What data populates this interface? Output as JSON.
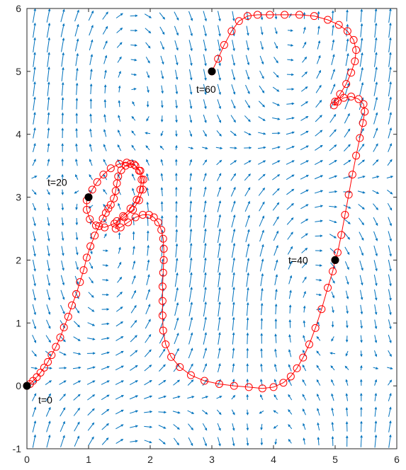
{
  "chart_data": {
    "type": "line",
    "title": "",
    "xlabel": "",
    "ylabel": "",
    "xlim": [
      0,
      6
    ],
    "ylim": [
      -1,
      6
    ],
    "xticks": [
      "0",
      "1",
      "2",
      "3",
      "4",
      "5",
      "6"
    ],
    "yticks": [
      "-1",
      "0",
      "1",
      "2",
      "3",
      "4",
      "5",
      "6"
    ],
    "grid": false,
    "legend": "none",
    "colors": {
      "quiver": "#0072BD",
      "trajectory": "#FF0000",
      "markers": "#000000",
      "axes": "#262626"
    },
    "series": [
      {
        "kind": "trajectory",
        "marker": "open-circle",
        "points": [
          [
            0.0,
            0.0
          ],
          [
            0.05,
            0.03
          ],
          [
            0.1,
            0.08
          ],
          [
            0.16,
            0.14
          ],
          [
            0.22,
            0.21
          ],
          [
            0.28,
            0.29
          ],
          [
            0.34,
            0.38
          ],
          [
            0.4,
            0.49
          ],
          [
            0.47,
            0.62
          ],
          [
            0.54,
            0.77
          ],
          [
            0.6,
            0.93
          ],
          [
            0.67,
            1.1
          ],
          [
            0.73,
            1.28
          ],
          [
            0.8,
            1.46
          ],
          [
            0.86,
            1.65
          ],
          [
            0.92,
            1.84
          ],
          [
            0.97,
            2.04
          ],
          [
            1.03,
            2.22
          ],
          [
            1.1,
            2.39
          ],
          [
            1.17,
            2.54
          ],
          [
            1.23,
            2.66
          ],
          [
            1.28,
            2.75
          ],
          [
            1.32,
            2.82
          ],
          [
            1.36,
            2.88
          ],
          [
            1.41,
            2.98
          ],
          [
            1.44,
            3.1
          ],
          [
            1.46,
            3.22
          ],
          [
            1.48,
            3.33
          ],
          [
            1.53,
            3.43
          ],
          [
            1.6,
            3.5
          ],
          [
            1.68,
            3.53
          ],
          [
            1.76,
            3.5
          ],
          [
            1.84,
            3.42
          ],
          [
            1.89,
            3.28
          ],
          [
            1.88,
            3.12
          ],
          [
            1.82,
            2.95
          ],
          [
            1.72,
            2.8
          ],
          [
            1.58,
            2.68
          ],
          [
            1.42,
            2.58
          ],
          [
            1.26,
            2.52
          ],
          [
            1.12,
            2.55
          ],
          [
            1.02,
            2.65
          ],
          [
            0.97,
            2.8
          ],
          [
            0.97,
            2.95
          ],
          [
            1.0,
            3.0
          ],
          [
            1.06,
            3.12
          ],
          [
            1.14,
            3.24
          ],
          [
            1.24,
            3.36
          ],
          [
            1.36,
            3.46
          ],
          [
            1.5,
            3.53
          ],
          [
            1.62,
            3.55
          ],
          [
            1.74,
            3.52
          ],
          [
            1.82,
            3.42
          ],
          [
            1.86,
            3.28
          ],
          [
            1.84,
            3.12
          ],
          [
            1.78,
            2.96
          ],
          [
            1.68,
            2.82
          ],
          [
            1.56,
            2.7
          ],
          [
            1.46,
            2.62
          ],
          [
            1.44,
            2.5
          ],
          [
            1.52,
            2.52
          ],
          [
            1.64,
            2.6
          ],
          [
            1.76,
            2.68
          ],
          [
            1.88,
            2.72
          ],
          [
            1.98,
            2.72
          ],
          [
            2.06,
            2.68
          ],
          [
            2.13,
            2.6
          ],
          [
            2.18,
            2.48
          ],
          [
            2.21,
            2.34
          ],
          [
            2.22,
            2.18
          ],
          [
            2.22,
            2.0
          ],
          [
            2.21,
            1.8
          ],
          [
            2.2,
            1.58
          ],
          [
            2.2,
            1.35
          ],
          [
            2.2,
            1.12
          ],
          [
            2.21,
            0.88
          ],
          [
            2.25,
            0.66
          ],
          [
            2.34,
            0.46
          ],
          [
            2.48,
            0.3
          ],
          [
            2.66,
            0.17
          ],
          [
            2.88,
            0.08
          ],
          [
            3.12,
            0.03
          ],
          [
            3.36,
            0.0
          ],
          [
            3.6,
            -0.02
          ],
          [
            3.82,
            -0.04
          ],
          [
            4.0,
            -0.02
          ],
          [
            4.16,
            0.05
          ],
          [
            4.28,
            0.15
          ],
          [
            4.38,
            0.28
          ],
          [
            4.48,
            0.45
          ],
          [
            4.58,
            0.66
          ],
          [
            4.68,
            0.92
          ],
          [
            4.78,
            1.22
          ],
          [
            4.88,
            1.56
          ],
          [
            4.96,
            1.82
          ],
          [
            5.0,
            2.0
          ],
          [
            5.04,
            2.12
          ],
          [
            5.1,
            2.4
          ],
          [
            5.16,
            2.72
          ],
          [
            5.22,
            3.04
          ],
          [
            5.28,
            3.36
          ],
          [
            5.34,
            3.66
          ],
          [
            5.4,
            3.94
          ],
          [
            5.45,
            4.18
          ],
          [
            5.48,
            4.36
          ],
          [
            5.46,
            4.48
          ],
          [
            5.38,
            4.56
          ],
          [
            5.26,
            4.6
          ],
          [
            5.14,
            4.58
          ],
          [
            5.04,
            4.52
          ],
          [
            4.98,
            4.46
          ],
          [
            5.0,
            4.52
          ],
          [
            5.08,
            4.64
          ],
          [
            5.18,
            4.8
          ],
          [
            5.26,
            4.98
          ],
          [
            5.32,
            5.16
          ],
          [
            5.34,
            5.34
          ],
          [
            5.3,
            5.5
          ],
          [
            5.2,
            5.64
          ],
          [
            5.06,
            5.74
          ],
          [
            4.88,
            5.82
          ],
          [
            4.66,
            5.88
          ],
          [
            4.42,
            5.9
          ],
          [
            4.18,
            5.9
          ],
          [
            3.94,
            5.9
          ],
          [
            3.74,
            5.9
          ],
          [
            3.58,
            5.88
          ],
          [
            3.44,
            5.8
          ],
          [
            3.32,
            5.64
          ],
          [
            3.2,
            5.42
          ],
          [
            3.1,
            5.2
          ],
          [
            3.0,
            5.0
          ]
        ]
      }
    ],
    "highlighted_points": [
      {
        "x": 0,
        "y": 0,
        "label": "t=0"
      },
      {
        "x": 1,
        "y": 3,
        "label": "t=20"
      },
      {
        "x": 5,
        "y": 2,
        "label": "t=40"
      },
      {
        "x": 3,
        "y": 5,
        "label": "t=60"
      }
    ],
    "quiver_field": {
      "xrange": [
        0,
        6
      ],
      "yrange": [
        -1,
        6
      ],
      "nx": 26,
      "ny": 30
    }
  }
}
